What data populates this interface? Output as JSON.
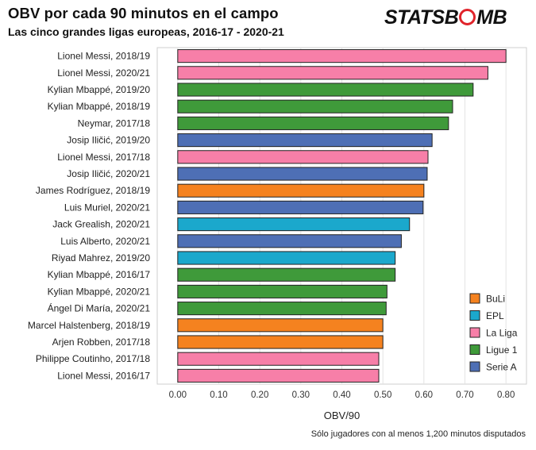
{
  "header": {
    "title": "OBV por cada 90 minutos en el campo",
    "subtitle": "Las cinco grandes ligas europeas, 2016-17 - 2020-21"
  },
  "logo": {
    "text_left": "STATSB",
    "text_right": "MB",
    "text_accent": "B"
  },
  "footnote": "Sólo jugadores con al menos 1,200 minutos disputados",
  "chart_data": {
    "type": "bar",
    "orientation": "horizontal",
    "title": "OBV por cada 90 minutos en el campo",
    "subtitle": "Las cinco grandes ligas europeas, 2016-17 - 2020-21",
    "xlabel": "OBV/90",
    "ylabel": "",
    "xlim": [
      -0.05,
      0.85
    ],
    "xticks": [
      "0.00",
      "0.10",
      "0.20",
      "0.30",
      "0.40",
      "0.50",
      "0.60",
      "0.70",
      "0.80"
    ],
    "grid": true,
    "legend_position": "bottom-right",
    "legend": [
      {
        "label": "BuLi",
        "color": "#f5821f"
      },
      {
        "label": "EPL",
        "color": "#1ba8cc"
      },
      {
        "label": "La Liga",
        "color": "#f77fa8"
      },
      {
        "label": "Ligue 1",
        "color": "#3f9a3a"
      },
      {
        "label": "Serie A",
        "color": "#4e6fb5"
      }
    ],
    "bars": [
      {
        "label": "Lionel Messi, 2018/19",
        "value": 0.8,
        "league": "La Liga"
      },
      {
        "label": "Lionel Messi, 2020/21",
        "value": 0.756,
        "league": "La Liga"
      },
      {
        "label": "Kylian Mbappé, 2019/20",
        "value": 0.72,
        "league": "Ligue 1"
      },
      {
        "label": "Kylian Mbappé, 2018/19",
        "value": 0.67,
        "league": "Ligue 1"
      },
      {
        "label": "Neymar, 2017/18",
        "value": 0.66,
        "league": "Ligue 1"
      },
      {
        "label": "Josip Iličić, 2019/20",
        "value": 0.62,
        "league": "Serie A"
      },
      {
        "label": "Lionel Messi, 2017/18",
        "value": 0.61,
        "league": "La Liga"
      },
      {
        "label": "Josip Iličić, 2020/21",
        "value": 0.608,
        "league": "Serie A"
      },
      {
        "label": "James Rodríguez, 2018/19",
        "value": 0.6,
        "league": "BuLi"
      },
      {
        "label": "Luis Muriel, 2020/21",
        "value": 0.598,
        "league": "Serie A"
      },
      {
        "label": "Jack Grealish, 2020/21",
        "value": 0.565,
        "league": "EPL"
      },
      {
        "label": "Luis Alberto, 2020/21",
        "value": 0.545,
        "league": "Serie A"
      },
      {
        "label": "Riyad Mahrez, 2019/20",
        "value": 0.53,
        "league": "EPL"
      },
      {
        "label": "Kylian Mbappé, 2016/17",
        "value": 0.53,
        "league": "Ligue 1"
      },
      {
        "label": "Kylian Mbappé, 2020/21",
        "value": 0.51,
        "league": "Ligue 1"
      },
      {
        "label": "Ángel Di María, 2020/21",
        "value": 0.508,
        "league": "Ligue 1"
      },
      {
        "label": "Marcel Halstenberg, 2018/19",
        "value": 0.5,
        "league": "BuLi"
      },
      {
        "label": "Arjen Robben, 2017/18",
        "value": 0.5,
        "league": "BuLi"
      },
      {
        "label": "Philippe Coutinho, 2017/18",
        "value": 0.49,
        "league": "La Liga"
      },
      {
        "label": "Lionel Messi, 2016/17",
        "value": 0.49,
        "league": "La Liga"
      }
    ]
  }
}
